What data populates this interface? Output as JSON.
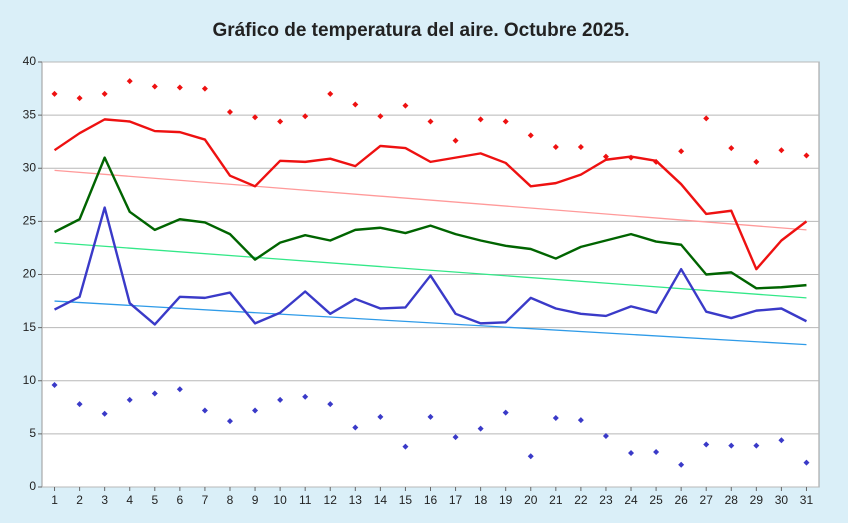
{
  "chart_data": {
    "type": "line",
    "title": "Gráfico de temperatura del aire. Octubre 2025.",
    "categories": [
      1,
      2,
      3,
      4,
      5,
      6,
      7,
      8,
      9,
      10,
      11,
      12,
      13,
      14,
      15,
      16,
      17,
      18,
      19,
      20,
      21,
      22,
      23,
      24,
      25,
      26,
      27,
      28,
      29,
      30,
      31
    ],
    "ylim": [
      0,
      40
    ],
    "yticks": [
      0,
      5,
      10,
      15,
      20,
      25,
      30,
      35,
      40
    ],
    "grid": true,
    "series": [
      {
        "style": "points",
        "color": "#ee1111",
        "values": [
          37.0,
          36.6,
          37.0,
          38.2,
          37.7,
          37.6,
          37.5,
          35.3,
          34.8,
          34.4,
          34.9,
          37.0,
          36.0,
          34.9,
          35.9,
          34.4,
          32.6,
          34.6,
          34.4,
          33.1,
          32.0,
          32.0,
          31.1,
          31.0,
          30.6,
          31.6,
          34.7,
          31.9,
          30.6,
          31.7,
          31.2
        ]
      },
      {
        "style": "line",
        "color": "#ee1111",
        "values": [
          31.7,
          33.3,
          34.6,
          34.4,
          33.5,
          33.4,
          32.7,
          29.3,
          28.3,
          30.7,
          30.6,
          30.9,
          30.2,
          32.1,
          31.9,
          30.6,
          31.0,
          31.4,
          30.5,
          28.3,
          28.6,
          29.4,
          30.8,
          31.1,
          30.7,
          28.5,
          25.7,
          26.0,
          20.5,
          23.2,
          25.0
        ]
      },
      {
        "style": "line",
        "color": "#006400",
        "values": [
          24.0,
          25.2,
          31.0,
          25.9,
          24.2,
          25.2,
          24.9,
          23.8,
          21.4,
          23.0,
          23.7,
          23.2,
          24.2,
          24.4,
          23.9,
          24.6,
          23.8,
          23.2,
          22.7,
          22.4,
          21.5,
          22.6,
          23.2,
          23.8,
          23.1,
          22.8,
          20.0,
          20.2,
          18.7,
          18.8,
          19.0
        ]
      },
      {
        "style": "line",
        "color": "#3a3ac8",
        "values": [
          16.7,
          17.9,
          26.3,
          17.3,
          15.3,
          17.9,
          17.8,
          18.3,
          15.4,
          16.4,
          18.4,
          16.3,
          17.7,
          16.8,
          16.9,
          19.9,
          16.3,
          15.4,
          15.5,
          17.8,
          16.8,
          16.3,
          16.1,
          17.0,
          16.4,
          20.5,
          16.5,
          15.9,
          16.6,
          16.8,
          15.6
        ]
      },
      {
        "style": "points",
        "color": "#3a3ac8",
        "values": [
          9.6,
          7.8,
          6.9,
          8.2,
          8.8,
          9.2,
          7.2,
          6.2,
          7.2,
          8.2,
          8.5,
          7.8,
          5.6,
          6.6,
          3.8,
          6.6,
          4.7,
          5.5,
          7.0,
          2.9,
          6.5,
          6.3,
          4.8,
          3.2,
          3.3,
          2.1,
          4.0,
          3.9,
          3.9,
          4.4,
          2.3
        ]
      }
    ],
    "trendlines": [
      {
        "color": "#ff9a9a",
        "start": 29.8,
        "end": 24.2
      },
      {
        "color": "#33e888",
        "start": 23.0,
        "end": 17.8
      },
      {
        "color": "#2f9be8",
        "start": 17.5,
        "end": 13.4
      }
    ]
  }
}
